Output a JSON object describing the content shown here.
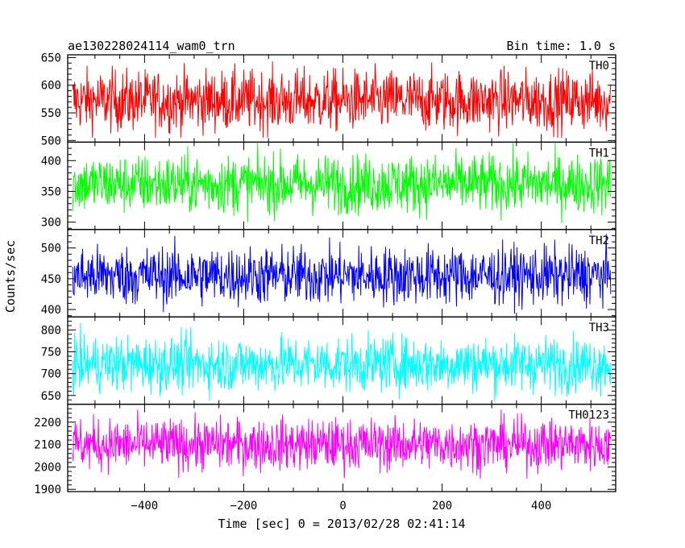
{
  "chart_data": {
    "type": "line",
    "title_left": "ae130228024114_wam0_trn",
    "title_right": "Bin time: 1.0 s",
    "xlabel": "Time [sec] 0 = 2013/02/28 02:41:14",
    "ylabel": "Counts/sec",
    "xlim": [
      -555,
      550
    ],
    "x_ticks": [
      -400,
      -200,
      0,
      200,
      400
    ],
    "x_tick_labels": [
      "−400",
      "−200",
      "0",
      "200",
      "400"
    ],
    "x_data_range": [
      -545,
      540
    ],
    "panels": [
      {
        "name": "TH0",
        "color": "#ff0000",
        "ylim": [
          497,
          655
        ],
        "yticks": [
          500,
          550,
          600,
          650
        ],
        "mean": 572,
        "spread": 28,
        "min": 505,
        "max": 652
      },
      {
        "name": "TH1",
        "color": "#00ff00",
        "ylim": [
          288,
          430
        ],
        "yticks": [
          300,
          350,
          400
        ],
        "mean": 362,
        "spread": 24,
        "min": 298,
        "max": 430
      },
      {
        "name": "TH2",
        "color": "#0000ff",
        "ylim": [
          388,
          530
        ],
        "yticks": [
          400,
          450,
          500
        ],
        "mean": 455,
        "spread": 24,
        "min": 393,
        "max": 530
      },
      {
        "name": "TH3",
        "color": "#00ffff",
        "ylim": [
          630,
          830
        ],
        "yticks": [
          650,
          700,
          750,
          800
        ],
        "mean": 722,
        "spread": 32,
        "min": 636,
        "max": 830
      },
      {
        "name": "TH0123",
        "color": "#ff00ff",
        "ylim": [
          1890,
          2280
        ],
        "yticks": [
          1900,
          2000,
          2100,
          2200
        ],
        "mean": 2100,
        "spread": 58,
        "min": 1895,
        "max": 2280
      }
    ]
  }
}
